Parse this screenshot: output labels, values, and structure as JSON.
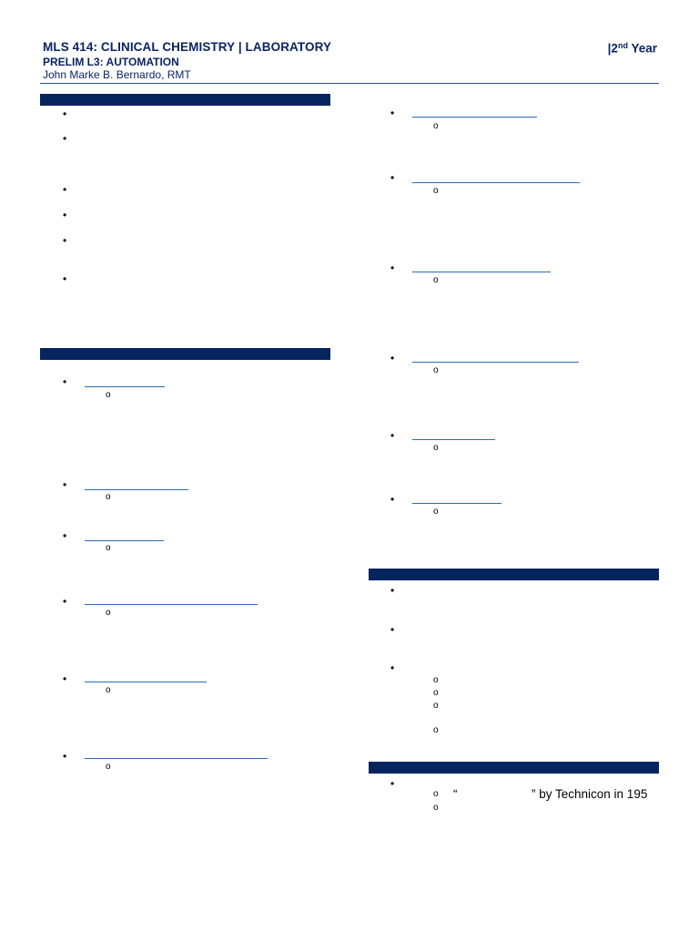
{
  "header": {
    "title": "MLS 414: CLINICAL CHEMISTRY | LABORATORY",
    "year_prefix": "|2",
    "year_sup": "nd",
    "year_suffix": " Year",
    "subtitle": "PRELIM L3: AUTOMATION",
    "author": "John Marke B. Bernardo, RMT"
  },
  "section4": {
    "open_quote": "“",
    "close_text": "” by Technicon in 195"
  }
}
